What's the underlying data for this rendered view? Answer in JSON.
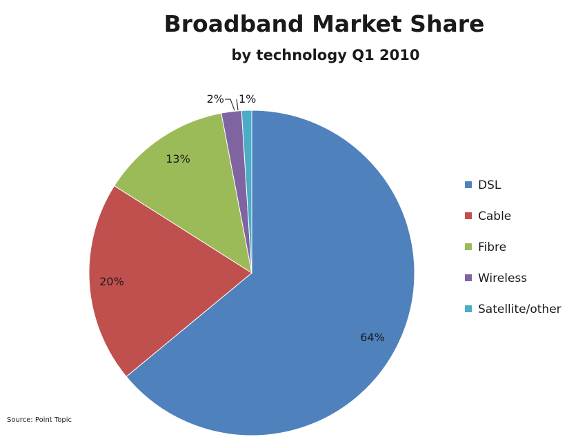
{
  "chart_data": {
    "type": "pie",
    "title": "Broadband Market Share",
    "subtitle": "by technology Q1 2010",
    "source": "Source: Point Topic",
    "legend_position": "right",
    "start_angle": "12 o'clock, clockwise",
    "slices": [
      {
        "label": "DSL",
        "value": 64,
        "display": "64%",
        "color": "#4f81bd"
      },
      {
        "label": "Cable",
        "value": 20,
        "display": "20%",
        "color": "#c0504d"
      },
      {
        "label": "Fibre",
        "value": 13,
        "display": "13%",
        "color": "#9bbb59"
      },
      {
        "label": "Wireless",
        "value": 2,
        "display": "2%",
        "color": "#8064a2"
      },
      {
        "label": "Satellite/other",
        "value": 1,
        "display": "1%",
        "color": "#4bacc6"
      }
    ]
  }
}
